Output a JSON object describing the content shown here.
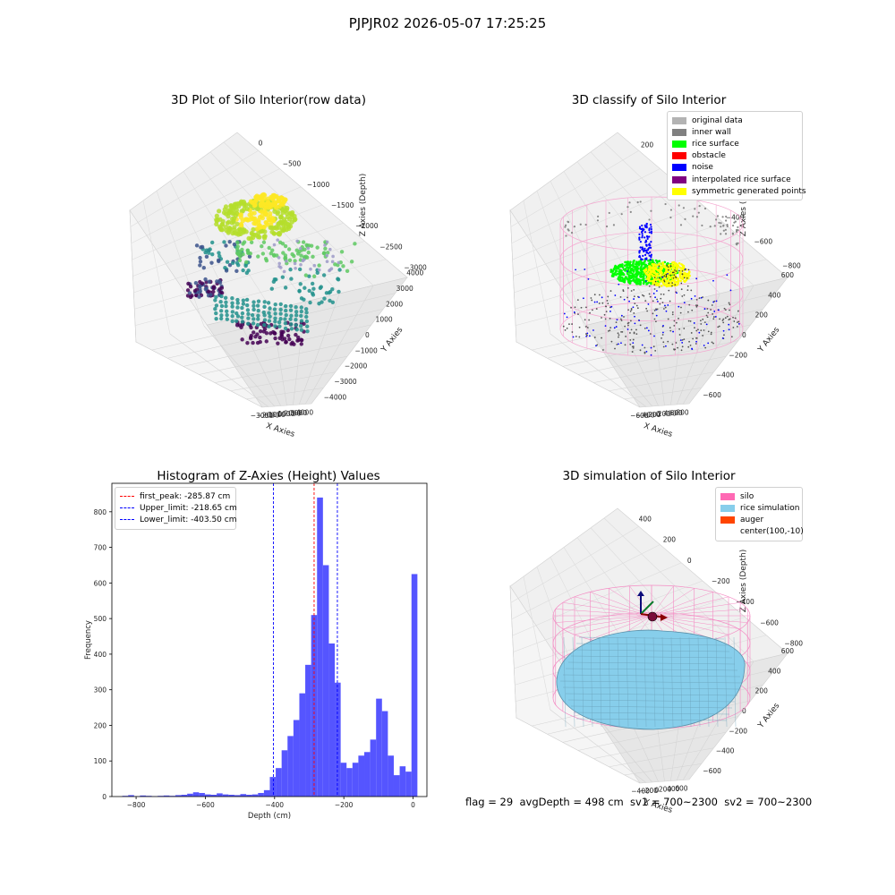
{
  "suptitle": "PJPJR02 2026-05-07 17:25:25",
  "footer": "flag = 29  avgDepth = 498 cm  sv1 = 700~2300  sv2 = 700~2300",
  "colors": {
    "rice_surface": "#00ff00",
    "obstacle": "#ff0000",
    "noise": "#0000ff",
    "interpolated": "#800080",
    "symmetric": "#ffff00",
    "original": "#b3b3b3",
    "inner_wall": "#808080",
    "silo": "#ff69b4",
    "rice_sim": "#87ceeb",
    "auger": "#ff4500",
    "hist_bar": "#4c4cff"
  },
  "chart_data": [
    {
      "type": "scatter",
      "title": "3D Plot of Silo Interior(row data)",
      "xlabel": "X Axies",
      "ylabel": "Y Axies",
      "zlabel": "Z Axies (Depth)",
      "xticks": [
        "−3000",
        "−2000",
        "−1000",
        "0",
        "1000",
        "2000",
        "3000",
        "4000"
      ],
      "yticks": [
        "−4000",
        "−3000",
        "−2000",
        "−1000",
        "0",
        "1000",
        "2000",
        "3000",
        "4000"
      ],
      "zticks": [
        "−3000",
        "−2500",
        "−2000",
        "−1500",
        "−1000",
        "−500",
        "0"
      ],
      "xlim": [
        -3500,
        4500
      ],
      "ylim": [
        -4500,
        4500
      ],
      "zlim": [
        -3300,
        100
      ]
    },
    {
      "type": "scatter",
      "title": "3D classify of Silo Interior",
      "xlabel": "X Axies",
      "ylabel": "Y Axies",
      "zlabel": "Z Axies (Depth)",
      "xticks": [
        "−600",
        "−400",
        "−200",
        "0",
        "200",
        "400",
        "600",
        "800"
      ],
      "yticks": [
        "−600",
        "−400",
        "−200",
        "0",
        "200",
        "400",
        "600"
      ],
      "zticks": [
        "−800",
        "−600",
        "−400",
        "−200",
        "0",
        "200"
      ],
      "xlim": [
        -650,
        850
      ],
      "ylim": [
        -650,
        650
      ],
      "zlim": [
        -900,
        300
      ],
      "legend": [
        {
          "label": "original data",
          "color": "#b3b3b3"
        },
        {
          "label": "inner wall",
          "color": "#808080"
        },
        {
          "label": "rice surface",
          "color": "#00ff00"
        },
        {
          "label": "obstacle",
          "color": "#ff0000"
        },
        {
          "label": "noise",
          "color": "#0000ff"
        },
        {
          "label": "interpolated rice surface",
          "color": "#800080"
        },
        {
          "label": "symmetric generated points",
          "color": "#ffff00"
        }
      ],
      "legend_position": "top-right"
    },
    {
      "type": "bar",
      "title": "Histogram of Z-Axies (Height) Values",
      "xlabel": "Depth (cm)",
      "ylabel": "Frequency",
      "xlim": [
        -870,
        40
      ],
      "ylim": [
        0,
        880
      ],
      "xticks": [
        -800,
        -600,
        -400,
        -200,
        0
      ],
      "yticks": [
        0,
        100,
        200,
        300,
        400,
        500,
        600,
        700,
        800
      ],
      "bin_start": -840,
      "bin_width": 17.05,
      "values": [
        2,
        4,
        1,
        3,
        2,
        1,
        2,
        3,
        2,
        4,
        5,
        8,
        12,
        10,
        6,
        5,
        9,
        6,
        5,
        4,
        7,
        5,
        6,
        10,
        18,
        55,
        80,
        130,
        170,
        215,
        290,
        370,
        510,
        840,
        650,
        430,
        320,
        95,
        80,
        95,
        115,
        125,
        160,
        275,
        240,
        115,
        60,
        85,
        70,
        625
      ],
      "vlines": [
        {
          "label": "first_peak: -285.87 cm",
          "x": -285.87,
          "color": "#ff0000"
        },
        {
          "label": "Upper_limit: -218.65 cm",
          "x": -218.65,
          "color": "#0000ff"
        },
        {
          "label": "Lower_limit: -403.50 cm",
          "x": -403.5,
          "color": "#0000ff"
        }
      ],
      "legend_position": "top-left"
    },
    {
      "type": "area",
      "title": "3D simulation of Silo Interior",
      "xlabel": "X Axies",
      "ylabel": "Y Axies",
      "zlabel": "Z Axies (Depth)",
      "xticks": [
        "−400",
        "−200",
        "0",
        "200",
        "400",
        "600"
      ],
      "yticks": [
        "−600",
        "−400",
        "−200",
        "0",
        "200",
        "400",
        "600"
      ],
      "zticks": [
        "−800",
        "−600",
        "−400",
        "−200",
        "0",
        "200",
        "400"
      ],
      "xlim": [
        -550,
        750
      ],
      "ylim": [
        -700,
        700
      ],
      "zlim": [
        -900,
        450
      ],
      "legend": [
        {
          "label": "silo",
          "color": "#ff69b4"
        },
        {
          "label": "rice simulation",
          "color": "#87ceeb"
        },
        {
          "label": "auger",
          "color": "#ff4500"
        },
        {
          "label": "center(100,-10)",
          "color": ""
        }
      ],
      "legend_position": "top-right"
    }
  ]
}
